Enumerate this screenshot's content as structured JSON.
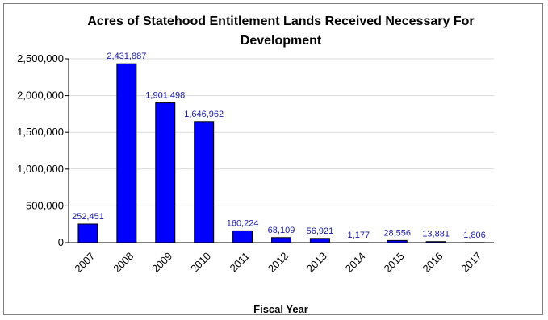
{
  "chart_data": {
    "type": "bar",
    "title_line1": "Acres of Statehood Entitlement Lands Received Necessary For",
    "title_line2": "Development",
    "xlabel": "Fiscal Year",
    "ylabel": "",
    "categories": [
      "2007",
      "2008",
      "2009",
      "2010",
      "2011",
      "2012",
      "2013",
      "2014",
      "2015",
      "2016",
      "2017"
    ],
    "values": [
      252451,
      2431887,
      1901498,
      1646962,
      160224,
      68109,
      56921,
      1177,
      28556,
      13881,
      1806
    ],
    "value_labels": [
      "252,451",
      "2,431,887",
      "1,901,498",
      "1,646,962",
      "160,224",
      "68,109",
      "56,921",
      "1,177",
      "28,556",
      "13,881",
      "1,806"
    ],
    "ylim": [
      0,
      2500000
    ],
    "yticks": [
      0,
      500000,
      1000000,
      1500000,
      2000000,
      2500000
    ],
    "ytick_labels": [
      "0",
      "500,000",
      "1,000,000",
      "1,500,000",
      "2,000,000",
      "2,500,000"
    ],
    "grid": true,
    "legend": "none",
    "bar_color": "#0000ff",
    "label_color": "#1a1aa6"
  }
}
